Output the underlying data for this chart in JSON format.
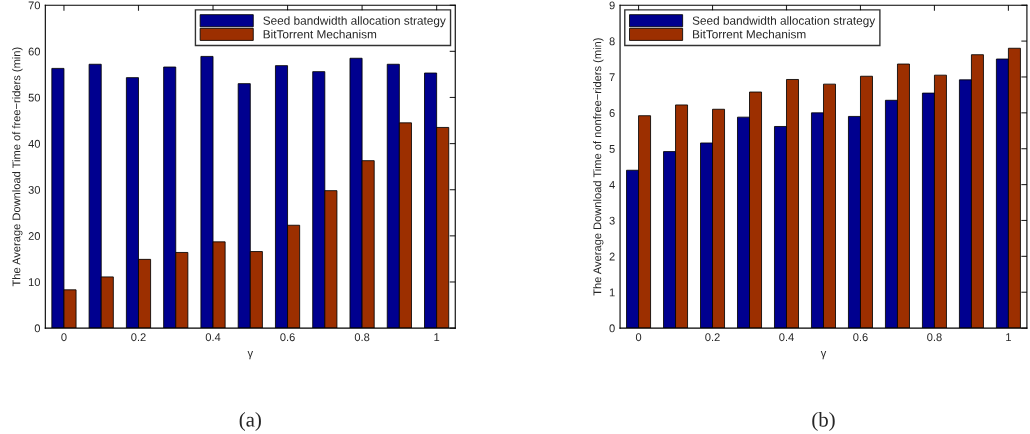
{
  "chart_data": [
    {
      "type": "bar",
      "xlabel": "γ",
      "ylabel": "The Average Download Time of free−riders (min)",
      "x": [
        0,
        0.1,
        0.2,
        0.3,
        0.4,
        0.5,
        0.6,
        0.7,
        0.8,
        0.9,
        1
      ],
      "series": [
        {
          "name": "Seed bandwidth allocation strategy",
          "color": "#00008f",
          "values": [
            56.3,
            57.2,
            54.3,
            56.6,
            58.9,
            53.0,
            56.9,
            55.6,
            58.5,
            57.2,
            55.3
          ]
        },
        {
          "name": "BitTorrent Mechanism",
          "color": "#9c2f00",
          "values": [
            8.3,
            11.1,
            14.9,
            16.4,
            18.7,
            16.6,
            22.3,
            29.8,
            36.3,
            44.5,
            43.5
          ]
        }
      ],
      "xlim": [
        -0.05,
        1.05
      ],
      "xticks": [
        0,
        0.2,
        0.4,
        0.6,
        0.8,
        1
      ],
      "ylim": [
        0,
        70
      ],
      "yticks": [
        0,
        10,
        20,
        30,
        40,
        50,
        60,
        70
      ],
      "legend": "top right",
      "grid": false,
      "annotations": [
        "(a)"
      ]
    },
    {
      "type": "bar",
      "xlabel": "γ",
      "ylabel": "The Average Download Time of nonfree−riders (min)",
      "x": [
        0,
        0.1,
        0.2,
        0.3,
        0.4,
        0.5,
        0.6,
        0.7,
        0.8,
        0.9,
        1
      ],
      "series": [
        {
          "name": "Seed bandwidth allocation strategy",
          "color": "#00008f",
          "values": [
            4.4,
            4.92,
            5.16,
            5.88,
            5.62,
            6.0,
            5.9,
            6.35,
            6.55,
            6.92,
            7.5
          ]
        },
        {
          "name": "BitTorrent Mechanism",
          "color": "#9c2f00",
          "values": [
            5.92,
            6.22,
            6.1,
            6.58,
            6.93,
            6.8,
            7.02,
            7.36,
            7.05,
            7.62,
            7.8
          ]
        }
      ],
      "xlim": [
        -0.05,
        1.05
      ],
      "xticks": [
        0,
        0.2,
        0.4,
        0.6,
        0.8,
        1
      ],
      "ylim": [
        0,
        9
      ],
      "yticks": [
        0,
        1,
        2,
        3,
        4,
        5,
        6,
        7,
        8,
        9
      ],
      "legend": "top left",
      "grid": false,
      "annotations": [
        "(b)"
      ]
    }
  ]
}
